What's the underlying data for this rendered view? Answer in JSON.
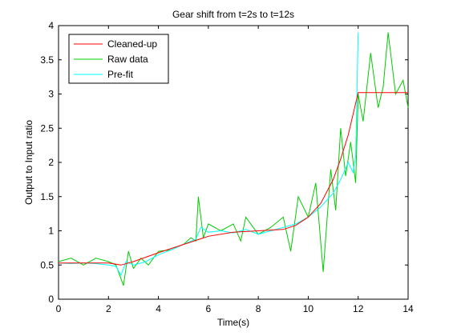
{
  "chart_data": {
    "type": "line",
    "title": "Gear shift from t=2s to t=12s",
    "xlabel": "Time(s)",
    "ylabel": "Output to Input ratio",
    "xlim": [
      0,
      14
    ],
    "ylim": [
      0,
      4
    ],
    "xticks": [
      0,
      2,
      4,
      6,
      8,
      10,
      12,
      14
    ],
    "yticks": [
      0,
      0.5,
      1,
      1.5,
      2,
      2.5,
      3,
      3.5,
      4
    ],
    "grid": false,
    "legend": {
      "position": "top-left",
      "entries": [
        "Cleaned-up",
        "Raw data",
        "Pre-fit"
      ]
    },
    "series": [
      {
        "name": "Cleaned-up",
        "color": "#ff0000",
        "x": [
          0,
          1,
          2,
          2.5,
          3,
          4,
          5,
          6,
          7,
          8,
          9,
          9.5,
          10,
          10.5,
          11,
          11.3,
          11.6,
          12,
          14
        ],
        "y": [
          0.53,
          0.53,
          0.53,
          0.5,
          0.55,
          0.68,
          0.8,
          0.92,
          0.98,
          1.0,
          1.02,
          1.08,
          1.2,
          1.4,
          1.75,
          2.05,
          2.4,
          3.02,
          3.02
        ]
      },
      {
        "name": "Raw data",
        "color": "#00cc00",
        "x": [
          0,
          0.5,
          1,
          1.5,
          2,
          2.3,
          2.6,
          2.8,
          3,
          3.3,
          3.6,
          4,
          4.5,
          5,
          5.3,
          5.5,
          5.6,
          5.8,
          6,
          6.5,
          7,
          7.3,
          7.5,
          8,
          8.5,
          9,
          9.3,
          9.6,
          10,
          10.3,
          10.6,
          10.9,
          11.1,
          11.3,
          11.5,
          11.7,
          11.9,
          12,
          12.2,
          12.5,
          12.8,
          13,
          13.2,
          13.5,
          13.8,
          14
        ],
        "y": [
          0.55,
          0.6,
          0.5,
          0.6,
          0.55,
          0.5,
          0.2,
          0.7,
          0.45,
          0.6,
          0.5,
          0.7,
          0.72,
          0.8,
          0.9,
          0.85,
          1.5,
          0.9,
          1.1,
          1.0,
          1.1,
          0.85,
          1.2,
          0.95,
          1.05,
          1.2,
          0.7,
          1.5,
          1.2,
          1.7,
          0.4,
          1.9,
          1.3,
          2.5,
          1.8,
          2.3,
          1.7,
          3.0,
          2.6,
          3.6,
          2.8,
          3.1,
          3.9,
          3.0,
          3.2,
          2.8
        ]
      },
      {
        "name": "Pre-fit",
        "color": "#00ffff",
        "x": [
          0,
          0.5,
          1,
          1.5,
          2,
          2.3,
          2.5,
          2.7,
          3,
          3.5,
          4,
          4.5,
          5,
          5.5,
          5.7,
          6,
          6.5,
          7,
          7.5,
          8,
          8.5,
          9,
          9.5,
          10,
          10.5,
          11,
          11.3,
          11.6,
          11.8,
          11.9,
          12
        ],
        "y": [
          0.53,
          0.52,
          0.53,
          0.52,
          0.5,
          0.48,
          0.35,
          0.55,
          0.5,
          0.55,
          0.65,
          0.72,
          0.8,
          0.88,
          1.05,
          0.98,
          1.0,
          0.97,
          1.02,
          0.95,
          1.0,
          1.05,
          1.1,
          1.2,
          1.35,
          1.55,
          1.75,
          2.0,
          1.85,
          2.1,
          3.9
        ]
      }
    ]
  }
}
